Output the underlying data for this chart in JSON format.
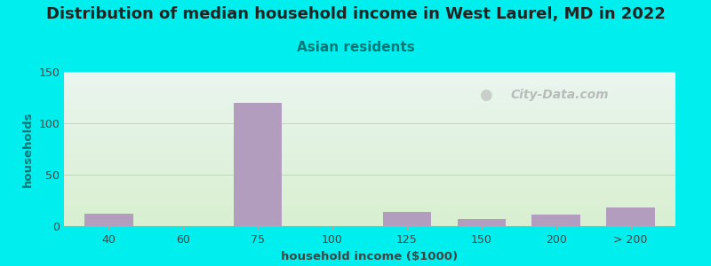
{
  "title": "Distribution of median household income in West Laurel, MD in 2022",
  "subtitle": "Asian residents",
  "xlabel": "household income ($1000)",
  "ylabel": "households",
  "background_outer": "#00EEEE",
  "grad_top": "#eaf5ef",
  "grad_bottom": "#d8efd0",
  "bar_color": "#b39dbe",
  "categories": [
    "40",
    "60",
    "75",
    "100",
    "125",
    "150",
    "200",
    "> 200"
  ],
  "x_positions": [
    1,
    2,
    3,
    4,
    5,
    6,
    7,
    8
  ],
  "values": [
    12,
    0,
    120,
    0,
    14,
    7,
    11,
    18
  ],
  "ylim": [
    0,
    150
  ],
  "yticks": [
    0,
    50,
    100,
    150
  ],
  "title_fontsize": 13,
  "subtitle_fontsize": 11,
  "title_color": "#222222",
  "subtitle_color": "#007878",
  "ylabel_color": "#007878",
  "xlabel_color": "#444444",
  "watermark": "City-Data.com",
  "bar_width": 0.65
}
